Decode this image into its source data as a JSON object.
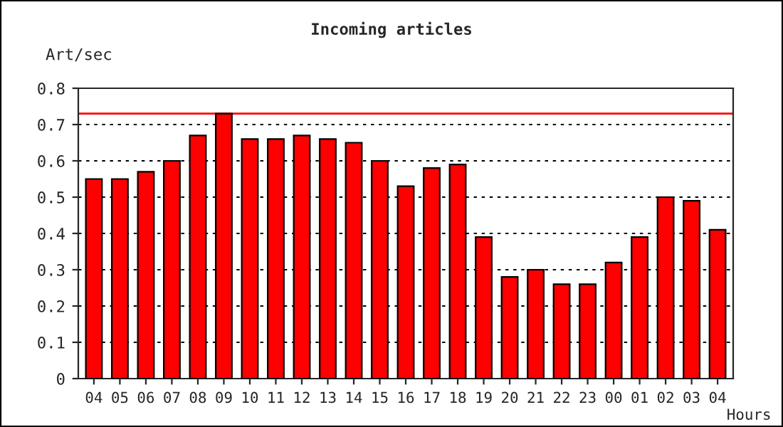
{
  "chart_data": {
    "type": "bar",
    "title": "Incoming articles",
    "ylabel": "Art/sec",
    "xlabel": "Hours",
    "categories": [
      "04",
      "05",
      "06",
      "07",
      "08",
      "09",
      "10",
      "11",
      "12",
      "13",
      "14",
      "15",
      "16",
      "17",
      "18",
      "19",
      "20",
      "21",
      "22",
      "23",
      "00",
      "01",
      "02",
      "03",
      "04"
    ],
    "values": [
      0.55,
      0.55,
      0.57,
      0.6,
      0.67,
      0.73,
      0.66,
      0.66,
      0.67,
      0.66,
      0.65,
      0.6,
      0.53,
      0.58,
      0.59,
      0.39,
      0.28,
      0.3,
      0.26,
      0.26,
      0.32,
      0.39,
      0.5,
      0.49,
      0.41
    ],
    "color": "#ff0000",
    "ylim": [
      0,
      0.8
    ],
    "yticks": [
      0,
      0.1,
      0.2,
      0.3,
      0.4,
      0.5,
      0.6,
      0.7,
      0.8
    ],
    "grid": "y",
    "ref_lines": [
      {
        "axis": "y",
        "value": 0.73,
        "color": "#ff0000",
        "line_style": "solid"
      }
    ]
  }
}
